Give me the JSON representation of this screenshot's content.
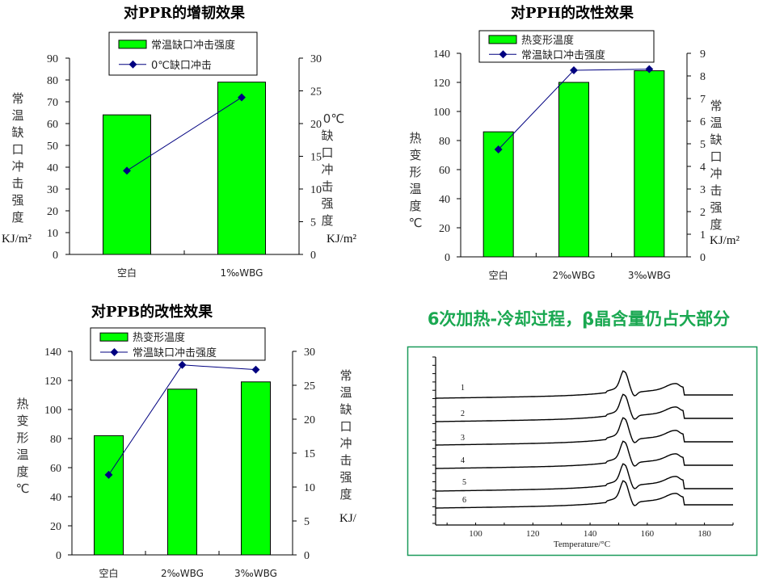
{
  "banner": {
    "text": "6次加热-冷却过程，β晶含量仍占大部分",
    "color": "#1aa851"
  },
  "colors": {
    "bar": "#00ff00",
    "bar_stroke": "#000000",
    "line": "#000080",
    "frame_border": "#1a9a5a"
  },
  "chart_data": [
    {
      "type": "bar+line",
      "title": "对PPR的增韧效果",
      "categories": [
        "空白",
        "1‰WBG"
      ],
      "series": [
        {
          "name": "常温缺口冲击强度",
          "kind": "bar",
          "axis": "left",
          "values": [
            64,
            79
          ]
        },
        {
          "name": "0℃缺口冲击",
          "kind": "line",
          "axis": "right",
          "values": [
            12.8,
            24
          ]
        }
      ],
      "ylabel": [
        "常",
        "温",
        "缺",
        "口",
        "冲",
        "击",
        "强",
        "度"
      ],
      "ylabel_unit": "KJ/m²",
      "y2label": [
        "0℃",
        "缺",
        "口",
        "冲",
        "击",
        "强",
        "度"
      ],
      "y2label_unit": "KJ/m²",
      "ylim": [
        0,
        90
      ],
      "yticks": [
        "0",
        "10",
        "20",
        "30",
        "40",
        "50",
        "60",
        "70",
        "80",
        "90"
      ],
      "y2lim": [
        0,
        30
      ],
      "y2ticks": [
        "0",
        "5",
        "10",
        "15",
        "20",
        "25",
        "30"
      ],
      "legend_position": "top"
    },
    {
      "type": "bar+line",
      "title": "对PPH的改性效果",
      "categories": [
        "空白",
        "2‰WBG",
        "3‰WBG"
      ],
      "series": [
        {
          "name": "热变形温度",
          "kind": "bar",
          "axis": "left",
          "values": [
            86,
            120,
            128
          ]
        },
        {
          "name": "常温缺口冲击强度",
          "kind": "line",
          "axis": "right",
          "values": [
            4.75,
            8.25,
            8.3
          ]
        }
      ],
      "ylabel": [
        "热",
        "变",
        "形",
        "温",
        "度",
        "℃"
      ],
      "ylabel_unit": "",
      "y2label": [
        "常",
        "温",
        "缺",
        "口",
        "冲",
        "击",
        "强",
        "度"
      ],
      "y2label_unit": "KJ/m²",
      "ylim": [
        0,
        140
      ],
      "yticks": [
        "0",
        "20",
        "40",
        "60",
        "80",
        "100",
        "120",
        "140"
      ],
      "y2lim": [
        0,
        9
      ],
      "y2ticks": [
        "0",
        "1",
        "2",
        "3",
        "4",
        "5",
        "6",
        "7",
        "8",
        "9"
      ],
      "legend_position": "top"
    },
    {
      "type": "bar+line",
      "title": "对PPB的改性效果",
      "categories": [
        "空白",
        "2‰WBG",
        "3‰WBG"
      ],
      "series": [
        {
          "name": "热变形温度",
          "kind": "bar",
          "axis": "left",
          "values": [
            82,
            114,
            119
          ]
        },
        {
          "name": "常温缺口冲击强度",
          "kind": "line",
          "axis": "right",
          "values": [
            11.8,
            28,
            27.3
          ]
        }
      ],
      "ylabel": [
        "热",
        "变",
        "形",
        "温",
        "度",
        "℃"
      ],
      "ylabel_unit": "",
      "y2label": [
        "常",
        "温",
        "缺",
        "口",
        "冲",
        "击",
        "强",
        "度"
      ],
      "y2label_unit": "KJ/",
      "ylim": [
        0,
        140
      ],
      "yticks": [
        "0",
        "20",
        "40",
        "60",
        "80",
        "100",
        "120",
        "140"
      ],
      "y2lim": [
        0,
        30
      ],
      "y2ticks": [
        "0",
        "5",
        "10",
        "15",
        "20",
        "25",
        "30"
      ],
      "legend_position": "top"
    },
    {
      "type": "line",
      "title": "",
      "xlabel": "Temperature/°C",
      "xlim": [
        86,
        190
      ],
      "xticks": [
        "100",
        "120",
        "140",
        "160",
        "180"
      ],
      "series_labels": [
        "1",
        "2",
        "3",
        "4",
        "5",
        "6"
      ],
      "peaks": {
        "beta_melt_peak_c": 152,
        "alpha_melt_peak_c": 170
      },
      "note": "DSC curves, stacked and offset vertically"
    }
  ]
}
